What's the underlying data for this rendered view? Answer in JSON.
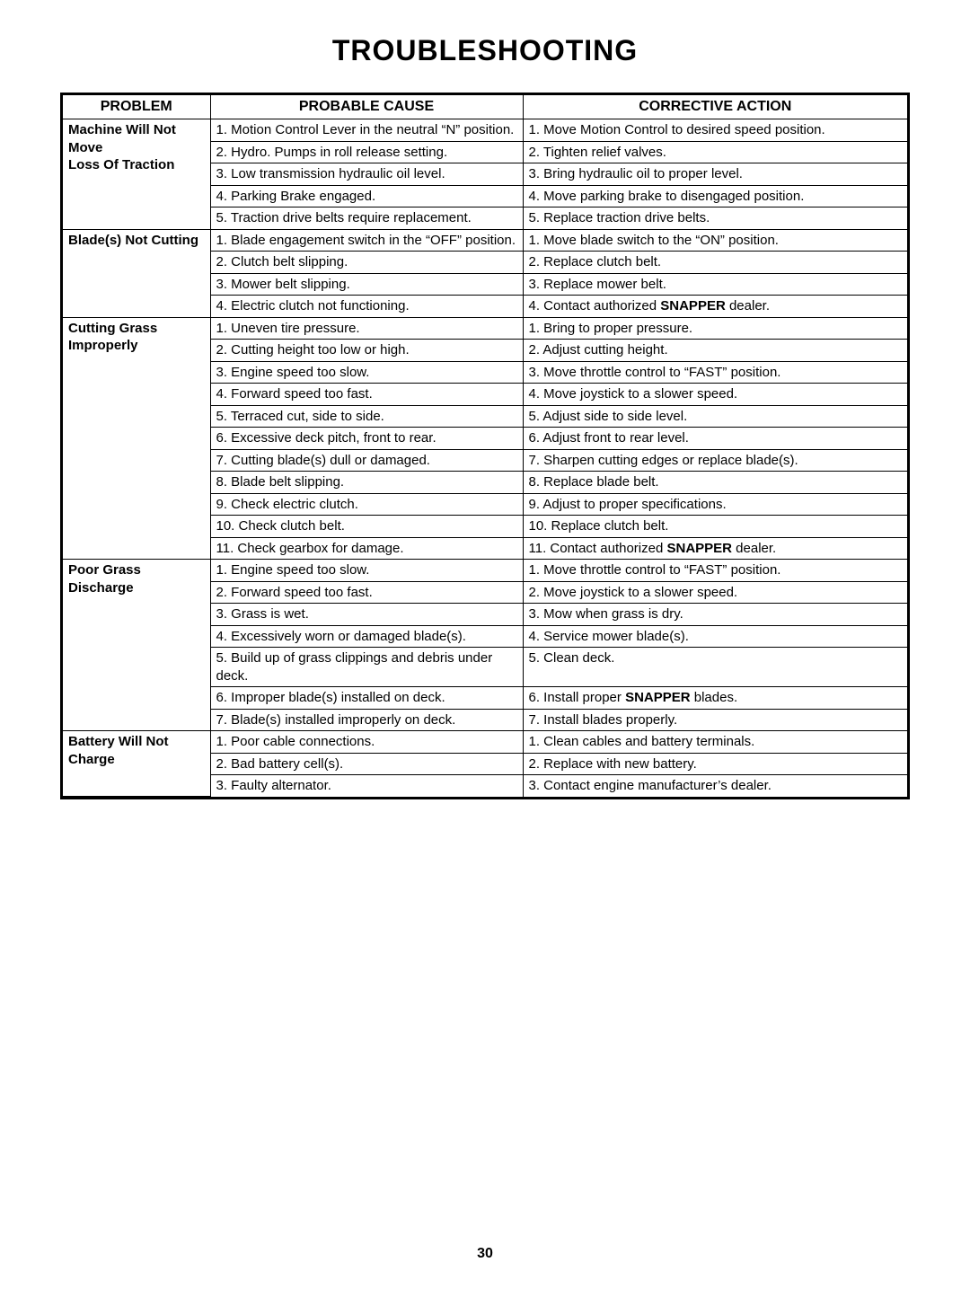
{
  "title": "TROUBLESHOOTING",
  "page_number": "30",
  "columns": {
    "problem": "PROBLEM",
    "cause": "PROBABLE CAUSE",
    "action": "CORRECTIVE ACTION"
  },
  "sections": [
    {
      "problem_lines": [
        "Machine Will Not Move",
        "Loss Of Traction"
      ],
      "rows": [
        {
          "cause": "1. Motion Control Lever in the neutral “N” position.",
          "action": "1. Move Motion Control to desired speed position."
        },
        {
          "cause": "2. Hydro. Pumps in roll release setting.",
          "action": "2. Tighten relief valves."
        },
        {
          "cause": "3. Low transmission hydraulic oil level.",
          "action": "3. Bring hydraulic oil to proper level."
        },
        {
          "cause": "4. Parking Brake engaged.",
          "action": "4. Move parking brake to disengaged position."
        },
        {
          "cause": "5. Traction drive belts require replacement.",
          "action": "5. Replace traction drive belts."
        }
      ]
    },
    {
      "problem_lines": [
        "Blade(s) Not Cutting"
      ],
      "rows": [
        {
          "cause": "1. Blade engagement switch in the “OFF” position.",
          "action": "1. Move blade switch to the “ON” position."
        },
        {
          "cause": "2. Clutch belt slipping.",
          "action": "2. Replace clutch belt."
        },
        {
          "cause": "3. Mower belt slipping.",
          "action": "3. Replace mower belt."
        },
        {
          "cause": "4. Electric clutch not functioning.",
          "action_html": "4. Contact authorized <b>SNAPPER</b> dealer."
        }
      ]
    },
    {
      "problem_lines": [
        "Cutting Grass",
        "Improperly"
      ],
      "rows": [
        {
          "cause": "1. Uneven tire pressure.",
          "action": "1. Bring to proper pressure."
        },
        {
          "cause": "2. Cutting height too low or high.",
          "action": "2. Adjust cutting height."
        },
        {
          "cause": "3. Engine speed too slow.",
          "action": "3. Move throttle control to “FAST” position."
        },
        {
          "cause": "4. Forward speed too fast.",
          "action": "4. Move joystick to a slower speed."
        },
        {
          "cause": "5. Terraced cut, side to side.",
          "action": "5. Adjust side to side level."
        },
        {
          "cause": "6. Excessive deck pitch, front to rear.",
          "action": "6. Adjust front to rear level."
        },
        {
          "cause": "7. Cutting blade(s) dull or damaged.",
          "action": "7. Sharpen cutting edges or replace blade(s)."
        },
        {
          "cause": "8. Blade belt slipping.",
          "action": "8. Replace blade belt."
        },
        {
          "cause": "9. Check electric clutch.",
          "action": "9. Adjust to proper specifications."
        },
        {
          "cause": "10. Check clutch belt.",
          "action": "10. Replace clutch belt."
        },
        {
          "cause": "11. Check gearbox for damage.",
          "action_html": "11. Contact authorized <b>SNAPPER</b> dealer."
        }
      ]
    },
    {
      "problem_lines": [
        "Poor Grass Discharge"
      ],
      "rows": [
        {
          "cause": "1. Engine speed too slow.",
          "action": "1. Move throttle control to “FAST” position."
        },
        {
          "cause": "2. Forward speed too fast.",
          "action": "2. Move joystick to a slower speed."
        },
        {
          "cause": "3. Grass is wet.",
          "action": "3. Mow when grass is dry."
        },
        {
          "cause": "4. Excessively worn or damaged blade(s).",
          "action": "4. Service mower blade(s)."
        },
        {
          "cause": "5. Build up of grass clippings and debris under deck.",
          "action": "5. Clean deck."
        },
        {
          "cause": "6. Improper blade(s) installed on deck.",
          "action_html": "6. Install proper <b>SNAPPER</b> blades."
        },
        {
          "cause": "7. Blade(s) installed improperly on deck.",
          "action": "7. Install blades properly."
        }
      ]
    },
    {
      "problem_lines": [
        "Battery Will Not Charge"
      ],
      "rows": [
        {
          "cause": "1. Poor cable connections.",
          "action": "1. Clean cables and battery terminals."
        },
        {
          "cause": "2. Bad battery cell(s).",
          "action": "2. Replace with new battery."
        },
        {
          "cause": "3. Faulty alternator.",
          "action": "3. Contact engine manufacturer’s dealer."
        }
      ]
    }
  ]
}
